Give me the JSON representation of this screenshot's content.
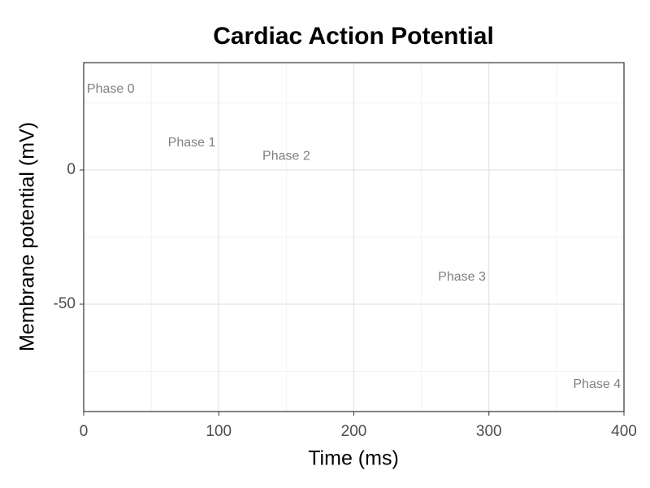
{
  "chart_data": {
    "type": "line",
    "title": "Cardiac Action Potential",
    "x_label": "Time (ms)",
    "y_label": "Membrane potential (mV)",
    "xlim": [
      0,
      400
    ],
    "xticks": [
      0,
      100,
      200,
      300,
      400
    ],
    "ylim": [
      -90,
      40
    ],
    "yticks": [
      -50,
      0
    ],
    "grid": true,
    "annotations": [
      {
        "text": "Phase 0",
        "x": 20,
        "y": 30
      },
      {
        "text": "Phase 1",
        "x": 80,
        "y": 10
      },
      {
        "text": "Phase 2",
        "x": 150,
        "y": 5
      },
      {
        "text": "Phase 3",
        "x": 280,
        "y": -40
      },
      {
        "text": "Phase 4",
        "x": 380,
        "y": -80
      }
    ]
  }
}
